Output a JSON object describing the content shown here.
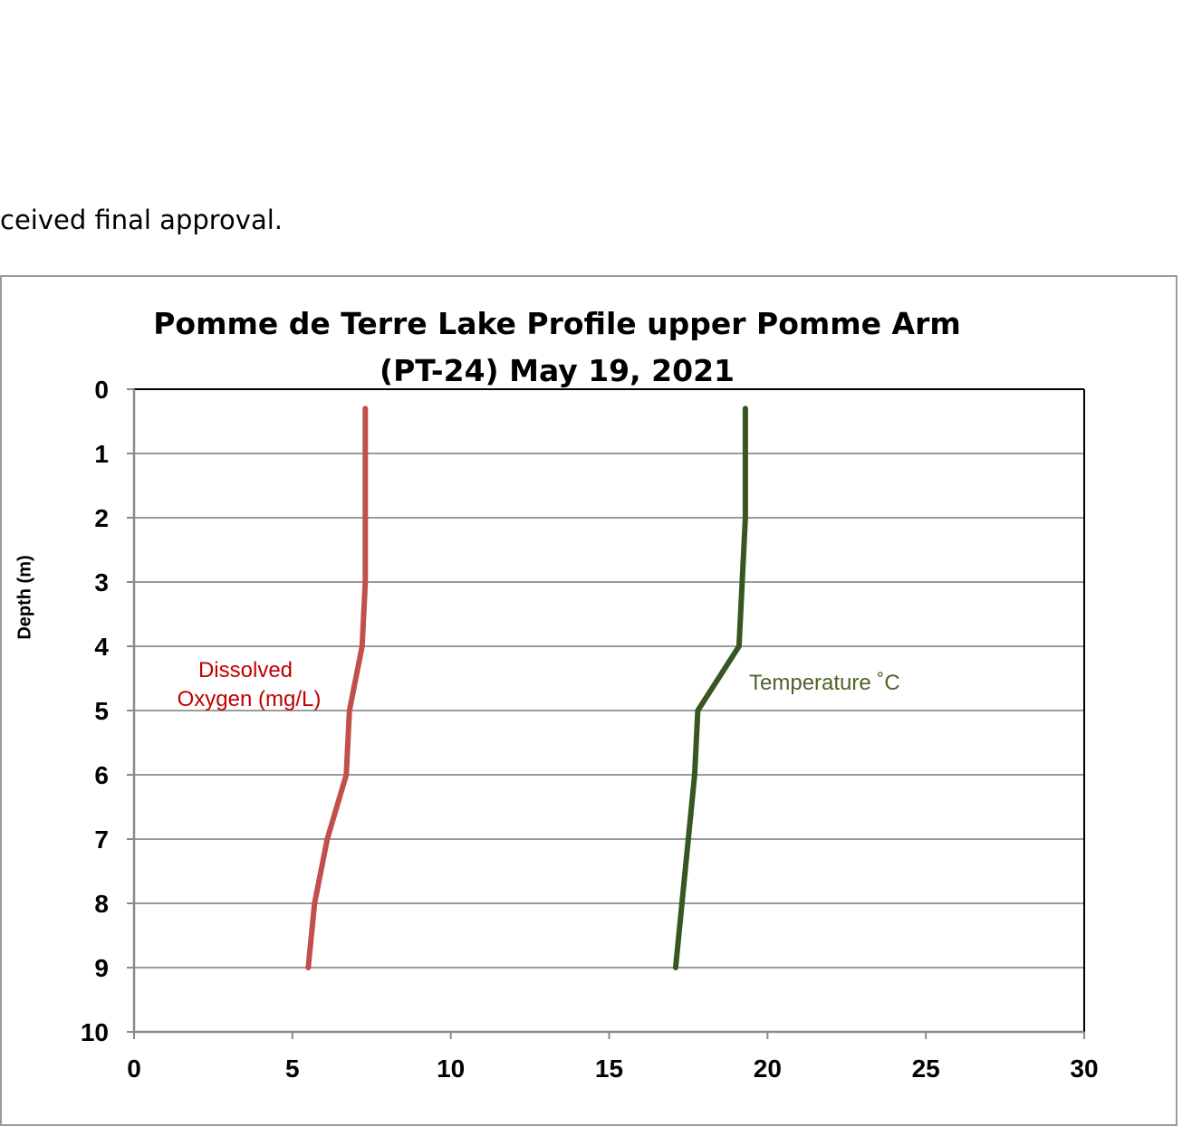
{
  "page": {
    "fragment_text": "ceived final approval."
  },
  "chart_data": {
    "type": "line",
    "title_line1": "Pomme de Terre Lake Profile upper Pomme Arm",
    "title_line2": "(PT-24)  May 19, 2021",
    "xlabel": "",
    "ylabel": "Depth (m)",
    "xlim": [
      0,
      30
    ],
    "ylim": [
      10,
      0
    ],
    "y_inverted": true,
    "x_ticks": [
      0,
      5,
      10,
      15,
      20,
      25,
      30
    ],
    "y_ticks": [
      0,
      1,
      2,
      3,
      4,
      5,
      6,
      7,
      8,
      9,
      10
    ],
    "grid": "horizontal",
    "series": [
      {
        "name": "Dissolved Oxygen (mg/L)",
        "label_line1": "Dissolved",
        "label_line2": "Oxygen (mg/L)",
        "color": "#c0504d",
        "label_color": "#c00000",
        "points": [
          {
            "x": 7.3,
            "y": 0.3
          },
          {
            "x": 7.3,
            "y": 1
          },
          {
            "x": 7.3,
            "y": 2
          },
          {
            "x": 7.3,
            "y": 3
          },
          {
            "x": 7.2,
            "y": 4
          },
          {
            "x": 6.8,
            "y": 5
          },
          {
            "x": 6.7,
            "y": 6
          },
          {
            "x": 6.1,
            "y": 7
          },
          {
            "x": 5.7,
            "y": 8
          },
          {
            "x": 5.5,
            "y": 9
          }
        ]
      },
      {
        "name": "Temperature ˚C",
        "label_line1": "Temperature ˚C",
        "color": "#375623",
        "label_color": "#4f6228",
        "points": [
          {
            "x": 19.3,
            "y": 0.3
          },
          {
            "x": 19.3,
            "y": 1
          },
          {
            "x": 19.3,
            "y": 2
          },
          {
            "x": 19.2,
            "y": 3
          },
          {
            "x": 19.1,
            "y": 4
          },
          {
            "x": 17.8,
            "y": 5
          },
          {
            "x": 17.7,
            "y": 6
          },
          {
            "x": 17.5,
            "y": 7
          },
          {
            "x": 17.3,
            "y": 8
          },
          {
            "x": 17.1,
            "y": 9
          }
        ]
      }
    ]
  }
}
